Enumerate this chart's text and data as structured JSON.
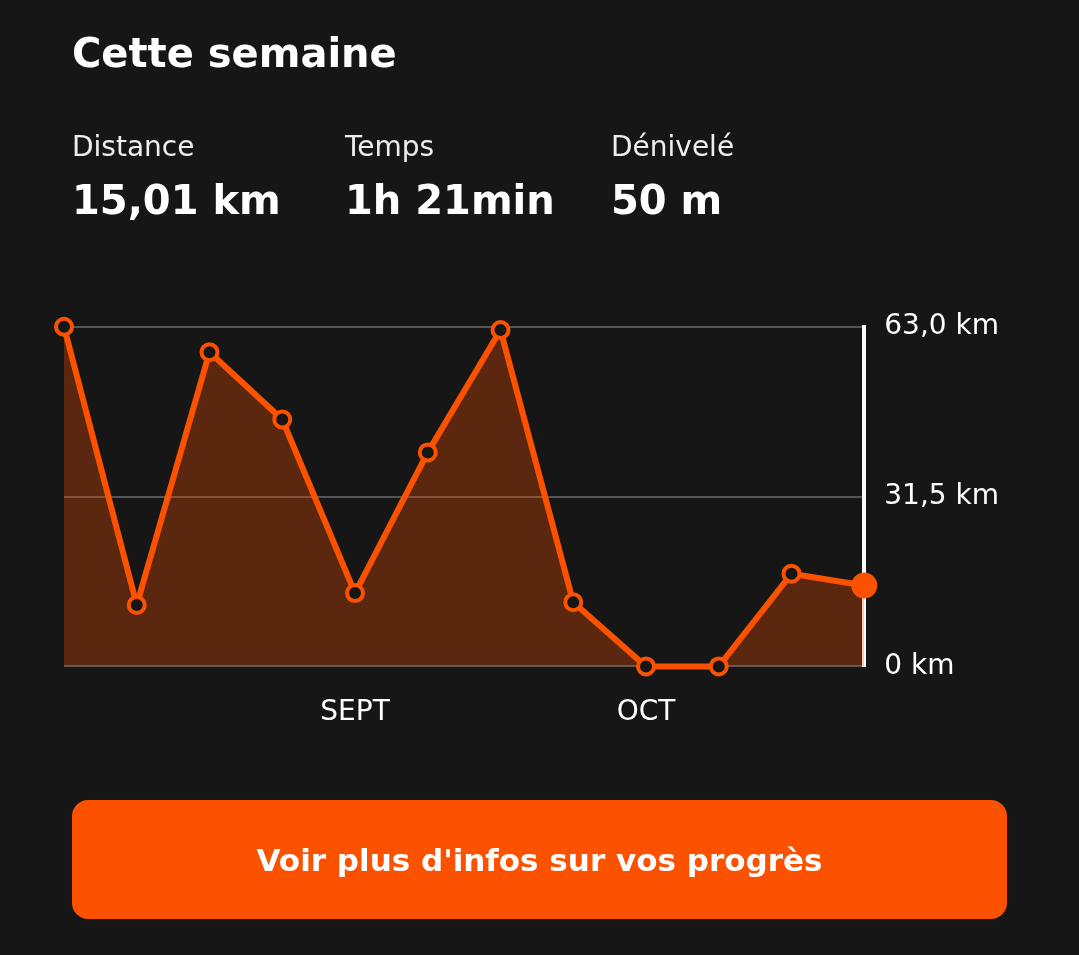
{
  "chart_data": {
    "type": "area",
    "title": "Cette semaine",
    "annotations": [
      "Distance",
      "15,01 km",
      "Temps",
      "1h 21min",
      "Dénivelé",
      "50 m",
      "Voir plus d'infos sur vos progrès"
    ],
    "categories": [
      null,
      null,
      null,
      null,
      "SEPT",
      null,
      null,
      null,
      "OCT",
      null,
      null,
      null
    ],
    "series": [
      {
        "color": "#fc5200",
        "values": [
          63,
          11.4,
          58.3,
          45.8,
          13.6,
          39.7,
          62.4,
          11.9,
          0,
          0,
          17.2,
          15
        ]
      }
    ],
    "ylim": [
      0,
      63
    ],
    "yticks": [
      {
        "value": 0,
        "label": "0 km"
      },
      {
        "value": 31.5,
        "label": "31,5 km"
      },
      {
        "value": 63,
        "label": "63,0 km"
      }
    ],
    "grid": "y",
    "legend": false,
    "marker": "circle"
  }
}
